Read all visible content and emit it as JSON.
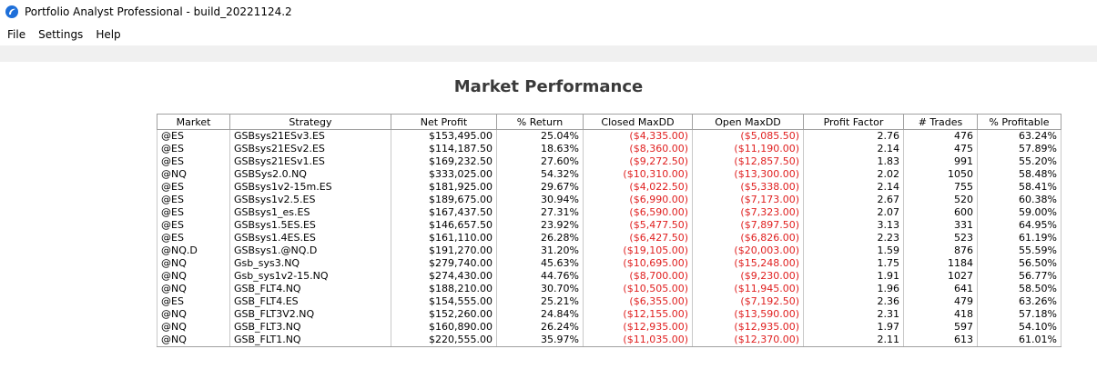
{
  "window": {
    "title": "Portfolio Analyst Professional - build_20221124.2"
  },
  "menu": {
    "items": [
      "File",
      "Settings",
      "Help"
    ]
  },
  "report": {
    "title": "Market Performance",
    "columns": [
      "Market",
      "Strategy",
      "Net Profit",
      "% Return",
      "Closed MaxDD",
      "Open MaxDD",
      "Profit Factor",
      "# Trades",
      "% Profitable"
    ],
    "rows": [
      [
        "@ES",
        "GSBsys21ESv3.ES",
        "$153,495.00",
        "25.04%",
        "($4,335.00)",
        "($5,085.50)",
        "2.76",
        "476",
        "63.24%"
      ],
      [
        "@ES",
        "GSBsys21ESv2.ES",
        "$114,187.50",
        "18.63%",
        "($8,360.00)",
        "($11,190.00)",
        "2.14",
        "475",
        "57.89%"
      ],
      [
        "@ES",
        "GSBsys21ESv1.ES",
        "$169,232.50",
        "27.60%",
        "($9,272.50)",
        "($12,857.50)",
        "1.83",
        "991",
        "55.20%"
      ],
      [
        "@NQ",
        "GSBSys2.0.NQ",
        "$333,025.00",
        "54.32%",
        "($10,310.00)",
        "($13,300.00)",
        "2.02",
        "1050",
        "58.48%"
      ],
      [
        "@ES",
        "GSBsys1v2-15m.ES",
        "$181,925.00",
        "29.67%",
        "($4,022.50)",
        "($5,338.00)",
        "2.14",
        "755",
        "58.41%"
      ],
      [
        "@ES",
        "GSBsys1v2.5.ES",
        "$189,675.00",
        "30.94%",
        "($6,990.00)",
        "($7,173.00)",
        "2.67",
        "520",
        "60.38%"
      ],
      [
        "@ES",
        "GSBsys1_es.ES",
        "$167,437.50",
        "27.31%",
        "($6,590.00)",
        "($7,323.00)",
        "2.07",
        "600",
        "59.00%"
      ],
      [
        "@ES",
        "GSBsys1.5ES.ES",
        "$146,657.50",
        "23.92%",
        "($5,477.50)",
        "($7,897.50)",
        "3.13",
        "331",
        "64.95%"
      ],
      [
        "@ES",
        "GSBsys1.4ES.ES",
        "$161,110.00",
        "26.28%",
        "($6,427.50)",
        "($6,826.00)",
        "2.23",
        "523",
        "61.19%"
      ],
      [
        "@NQ.D",
        "GSBsys1.@NQ.D",
        "$191,270.00",
        "31.20%",
        "($19,105.00)",
        "($20,003.00)",
        "1.59",
        "876",
        "55.59%"
      ],
      [
        "@NQ",
        "Gsb_sys3.NQ",
        "$279,740.00",
        "45.63%",
        "($10,695.00)",
        "($15,248.00)",
        "1.75",
        "1184",
        "56.50%"
      ],
      [
        "@NQ",
        "Gsb_sys1v2-15.NQ",
        "$274,430.00",
        "44.76%",
        "($8,700.00)",
        "($9,230.00)",
        "1.91",
        "1027",
        "56.77%"
      ],
      [
        "@NQ",
        "GSB_FLT4.NQ",
        "$188,210.00",
        "30.70%",
        "($10,505.00)",
        "($11,945.00)",
        "1.96",
        "641",
        "58.50%"
      ],
      [
        "@ES",
        "GSB_FLT4.ES",
        "$154,555.00",
        "25.21%",
        "($6,355.00)",
        "($7,192.50)",
        "2.36",
        "479",
        "63.26%"
      ],
      [
        "@NQ",
        "GSB_FLT3V2.NQ",
        "$152,260.00",
        "24.84%",
        "($12,155.00)",
        "($13,590.00)",
        "2.31",
        "418",
        "57.18%"
      ],
      [
        "@NQ",
        "GSB_FLT3.NQ",
        "$160,890.00",
        "26.24%",
        "($12,935.00)",
        "($12,935.00)",
        "1.97",
        "597",
        "54.10%"
      ],
      [
        "@NQ",
        "GSB_FLT1.NQ",
        "$220,555.00",
        "35.97%",
        "($11,035.00)",
        "($12,370.00)",
        "2.11",
        "613",
        "61.01%"
      ]
    ]
  },
  "colors": {
    "negative": "#e02020",
    "app_icon": "#1e6fd9"
  },
  "icons": {
    "app": "app-logo-icon"
  }
}
